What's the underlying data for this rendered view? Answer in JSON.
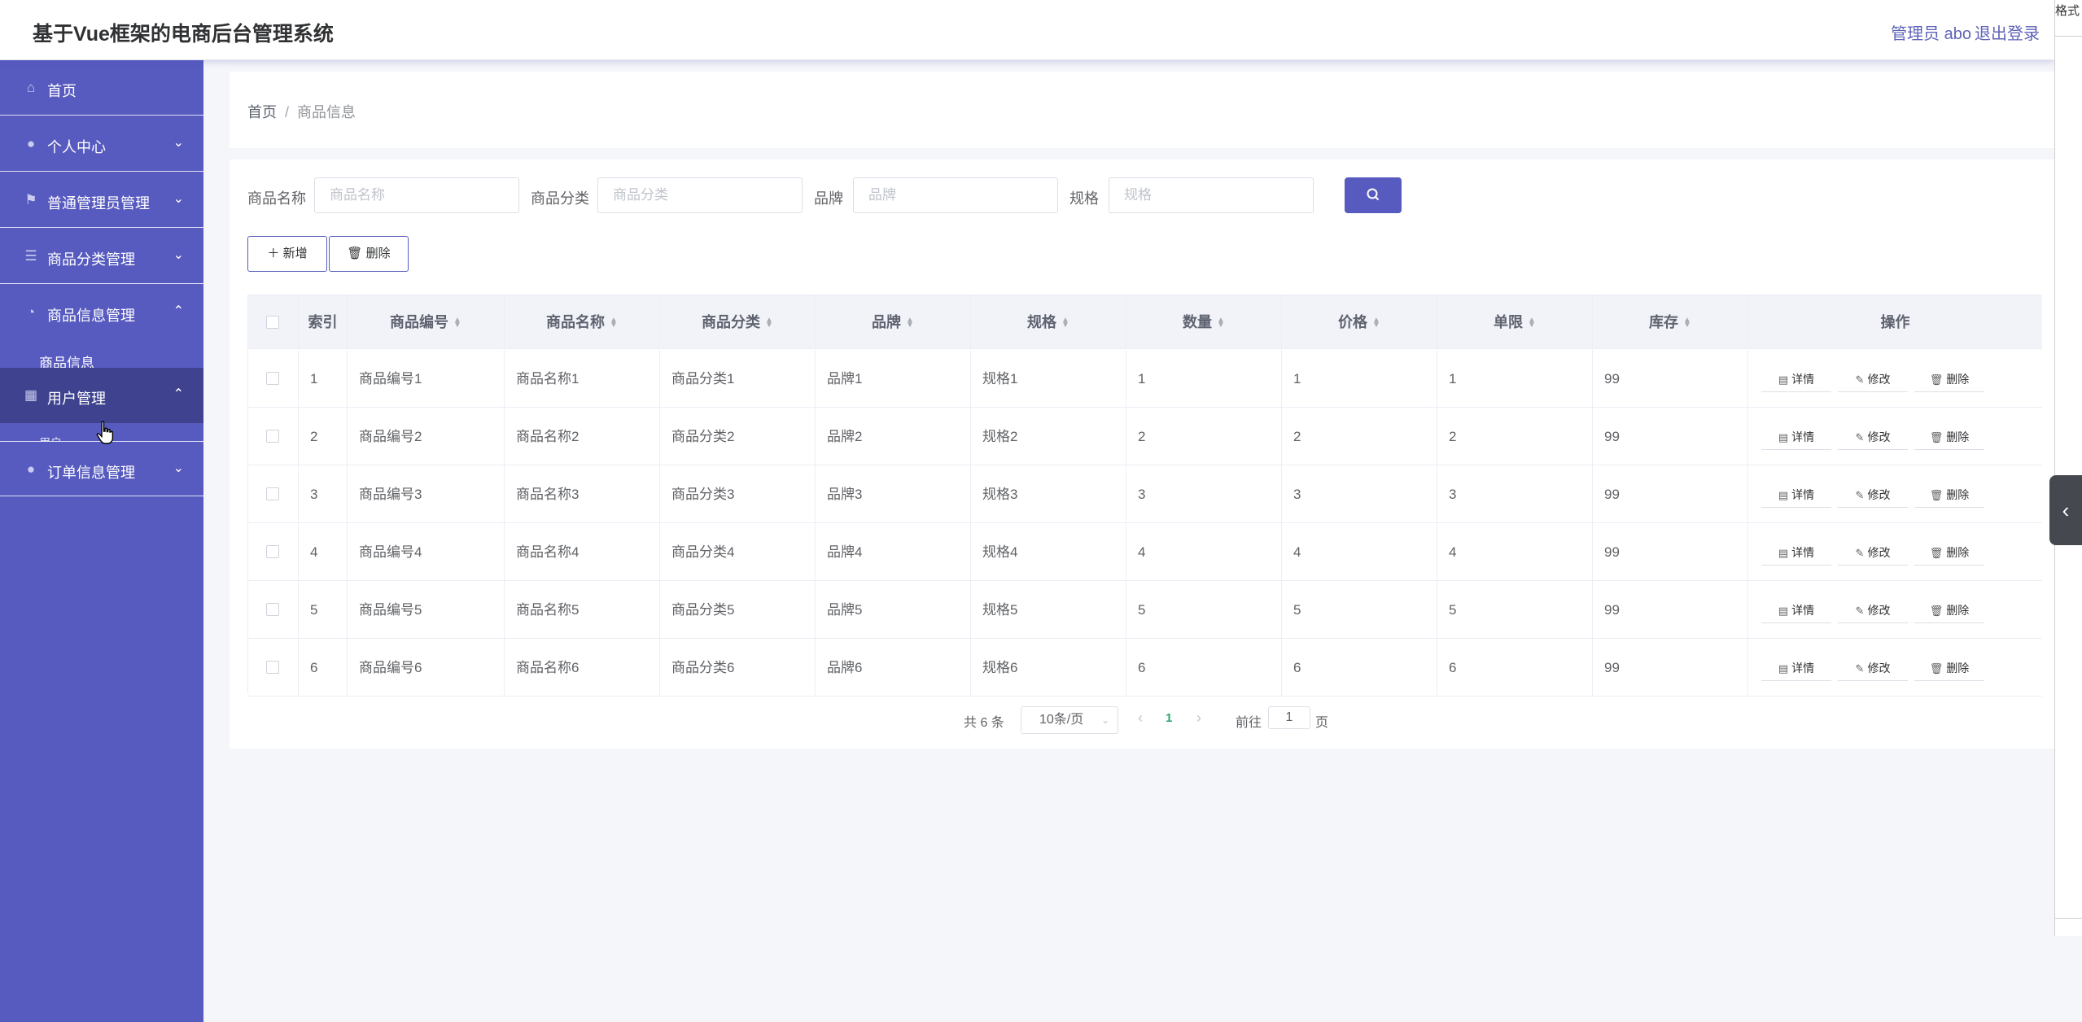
{
  "header": {
    "title": "基于Vue框架的电商后台管理系统",
    "admin_label": "管理员 abo",
    "logout_label": "退出登录"
  },
  "extension_strip": {
    "text": "格式"
  },
  "sidebar": {
    "items": [
      {
        "label": "首页",
        "icon": "home-icon"
      },
      {
        "label": "个人中心",
        "icon": "user-icon"
      },
      {
        "label": "普通管理员管理",
        "icon": "flag-icon"
      },
      {
        "label": "商品分类管理",
        "icon": "sliders-icon"
      },
      {
        "label": "商品信息管理",
        "icon": "gauge-icon"
      },
      {
        "label": "用户管理",
        "icon": "grid-icon"
      },
      {
        "label": "订单信息管理",
        "icon": "user-icon"
      }
    ],
    "submenu_label": "商品信息",
    "hidden_submenu_label": "用户"
  },
  "breadcrumb": {
    "home": "首页",
    "separator": "/",
    "current": "商品信息"
  },
  "search": {
    "fields": [
      {
        "label": "商品名称",
        "placeholder": "商品名称"
      },
      {
        "label": "商品分类",
        "placeholder": "商品分类"
      },
      {
        "label": "品牌",
        "placeholder": "品牌"
      },
      {
        "label": "规格",
        "placeholder": "规格"
      }
    ]
  },
  "actions": {
    "add_label": "新增",
    "delete_label": "删除"
  },
  "table": {
    "columns": [
      "索引",
      "商品编号",
      "商品名称",
      "商品分类",
      "品牌",
      "规格",
      "数量",
      "价格",
      "单限",
      "库存",
      "操作"
    ],
    "rows": [
      [
        "1",
        "商品编号1",
        "商品名称1",
        "商品分类1",
        "品牌1",
        "规格1",
        "1",
        "1",
        "1",
        "99"
      ],
      [
        "2",
        "商品编号2",
        "商品名称2",
        "商品分类2",
        "品牌2",
        "规格2",
        "2",
        "2",
        "2",
        "99"
      ],
      [
        "3",
        "商品编号3",
        "商品名称3",
        "商品分类3",
        "品牌3",
        "规格3",
        "3",
        "3",
        "3",
        "99"
      ],
      [
        "4",
        "商品编号4",
        "商品名称4",
        "商品分类4",
        "品牌4",
        "规格4",
        "4",
        "4",
        "4",
        "99"
      ],
      [
        "5",
        "商品编号5",
        "商品名称5",
        "商品分类5",
        "品牌5",
        "规格5",
        "5",
        "5",
        "5",
        "99"
      ],
      [
        "6",
        "商品编号6",
        "商品名称6",
        "商品分类6",
        "品牌6",
        "规格6",
        "6",
        "6",
        "6",
        "99"
      ]
    ],
    "row_actions": {
      "detail": "详情",
      "edit": "修改",
      "delete": "删除"
    }
  },
  "pagination": {
    "total": "共 6 条",
    "page_size": "10条/页",
    "current_page": "1",
    "goto_label": "前往",
    "goto_value": "1",
    "page_suffix": "页"
  },
  "colors": {
    "sidebar": "#575bbf",
    "active_item": "#3f438f",
    "accent": "#575bbf",
    "current_page": "#2aa56c"
  }
}
